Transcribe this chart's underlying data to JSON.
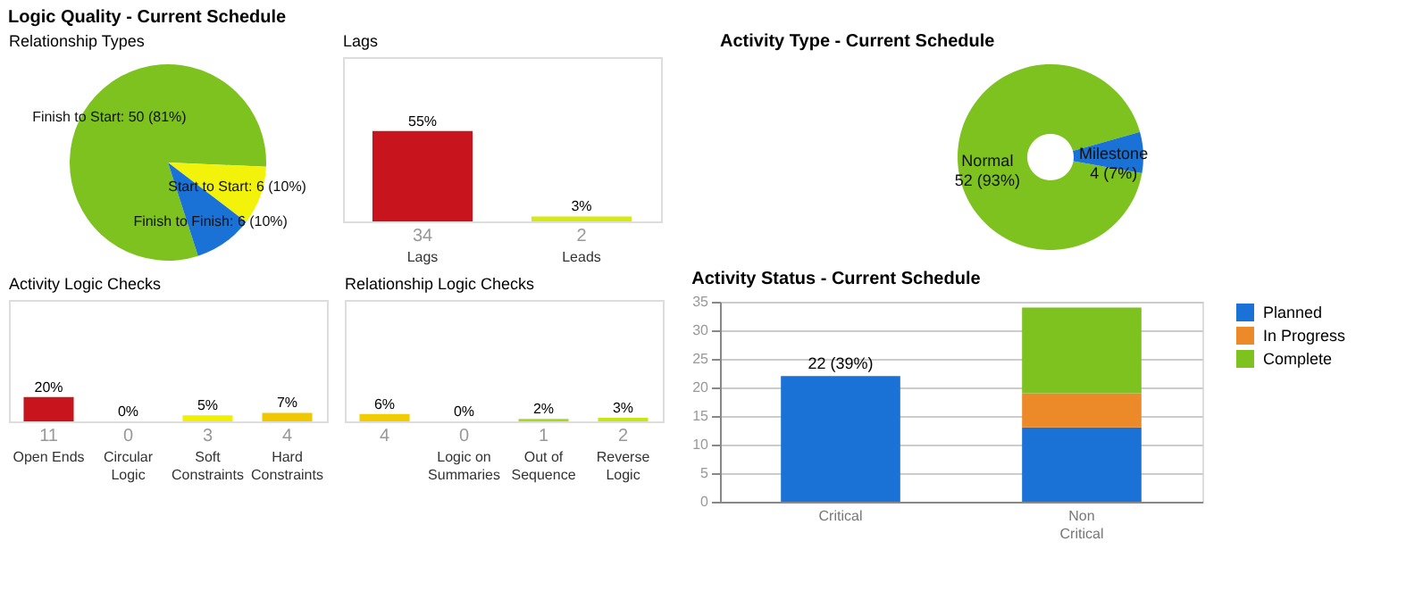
{
  "chart_data": [
    {
      "type": "pie",
      "title": "Logic Quality - Current Schedule",
      "subtitle": "Relationship Types",
      "categories": [
        "Finish to Start",
        "Start to Start",
        "Finish to Finish"
      ],
      "values": [
        50,
        6,
        6
      ],
      "colors": [
        "#7dc21e",
        "#f2f20a",
        "#1a72d6"
      ],
      "value_labels": [
        "50 (81%)",
        "6 (10%)",
        "6 (10%)"
      ]
    },
    {
      "type": "bar",
      "title": "Lags",
      "categories": [
        "Lags",
        "Leads"
      ],
      "values": [
        55,
        3
      ],
      "colors": [
        "#c8141c",
        "#d4ea10"
      ],
      "ylim": [
        0,
        100
      ],
      "tick_labels": "x",
      "value_labels": [
        "55%",
        "3%"
      ],
      "annotations": [
        "34",
        "2"
      ]
    },
    {
      "type": "bar",
      "title": "Activity Logic Checks",
      "categories": [
        "Open Ends",
        "Circular Logic",
        "Soft Constraints",
        "Hard Constraints"
      ],
      "values": [
        20,
        0,
        5,
        7
      ],
      "colors": [
        "#c8141c",
        "#7dc21e",
        "#f0f000",
        "#f0c800"
      ],
      "ylim": [
        0,
        100
      ],
      "tick_labels": "x",
      "value_labels": [
        "20%",
        "0%",
        "5%",
        "7%"
      ],
      "annotations": [
        "11",
        "0",
        "3",
        "4"
      ]
    },
    {
      "type": "bar",
      "title": "Relationship Logic Checks",
      "categories": [
        null,
        "Logic on Summaries",
        "Out of Sequence",
        "Reverse Logic"
      ],
      "values": [
        6,
        0,
        2,
        3
      ],
      "colors": [
        "#f0cc00",
        "#7dc21e",
        "#a8d81a",
        "#c8e614"
      ],
      "ylim": [
        0,
        100
      ],
      "tick_labels": "x",
      "value_labels": [
        "6%",
        "0%",
        "2%",
        "3%"
      ],
      "annotations": [
        "4",
        "0",
        "1",
        "2"
      ]
    },
    {
      "type": "donut",
      "title": "Activity Type - Current Schedule",
      "categories": [
        "Normal",
        "Milestone"
      ],
      "values": [
        52,
        4
      ],
      "colors": [
        "#7dc21e",
        "#1a72d6"
      ],
      "value_labels": [
        "52 (93%)",
        "4 (7%)"
      ]
    },
    {
      "type": "bar",
      "title": "Activity Status - Current Schedule",
      "categories": [
        "Critical",
        "Non Critical"
      ],
      "stacked": true,
      "ylim": [
        0,
        35
      ],
      "yticks": [
        0,
        5,
        10,
        15,
        20,
        25,
        30,
        35
      ],
      "grid": "y",
      "legend": "right",
      "totals": [
        "22 (39%)",
        null
      ],
      "series": [
        {
          "name": "Planned",
          "color": "#1a72d6",
          "values": [
            22,
            13
          ]
        },
        {
          "name": "In Progress",
          "color": "#ec8a2a",
          "values": [
            0,
            6
          ]
        },
        {
          "name": "Complete",
          "color": "#7dc21e",
          "values": [
            0,
            15
          ]
        }
      ]
    }
  ]
}
